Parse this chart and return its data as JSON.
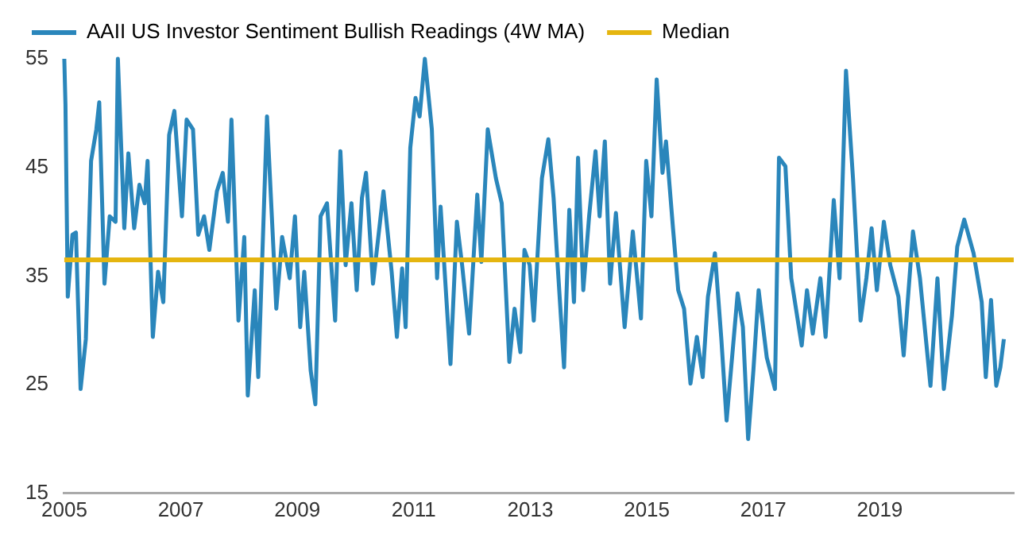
{
  "chart_data": {
    "type": "line",
    "legend": "top left",
    "grid": false,
    "marker": "none",
    "line_style": "solid",
    "xlim": [
      2005,
      2021.3
    ],
    "xticks": [
      2005,
      2007,
      2009,
      2011,
      2013,
      2015,
      2017,
      2019
    ],
    "ylim": [
      15,
      55
    ],
    "yticks": [
      15,
      25,
      35,
      45,
      55
    ],
    "ref_lines": [
      {
        "axis": "y",
        "value": 36.5,
        "label": "Median",
        "color": "#e5b50f"
      }
    ],
    "series": [
      {
        "name": "AAII US Investor Sentiment Bullish Readings (4W MA)",
        "color": "#2a86bb",
        "x": [
          2005.0,
          2005.02,
          2005.06,
          2005.14,
          2005.2,
          2005.28,
          2005.37,
          2005.46,
          2005.55,
          2005.6,
          2005.69,
          2005.78,
          2005.88,
          2005.92,
          2006.03,
          2006.1,
          2006.2,
          2006.29,
          2006.38,
          2006.43,
          2006.52,
          2006.61,
          2006.7,
          2006.8,
          2006.89,
          2007.02,
          2007.1,
          2007.21,
          2007.3,
          2007.4,
          2007.49,
          2007.62,
          2007.72,
          2007.81,
          2007.87,
          2007.99,
          2008.09,
          2008.15,
          2008.27,
          2008.33,
          2008.48,
          2008.64,
          2008.74,
          2008.87,
          2008.96,
          2009.05,
          2009.12,
          2009.23,
          2009.31,
          2009.4,
          2009.51,
          2009.65,
          2009.74,
          2009.83,
          2009.93,
          2010.02,
          2010.11,
          2010.18,
          2010.3,
          2010.48,
          2010.62,
          2010.71,
          2010.8,
          2010.86,
          2010.94,
          2011.03,
          2011.1,
          2011.19,
          2011.31,
          2011.4,
          2011.46,
          2011.63,
          2011.74,
          2011.83,
          2011.95,
          2012.09,
          2012.16,
          2012.27,
          2012.41,
          2012.51,
          2012.64,
          2012.73,
          2012.83,
          2012.9,
          2012.99,
          2013.06,
          2013.2,
          2013.31,
          2013.4,
          2013.47,
          2013.58,
          2013.67,
          2013.75,
          2013.82,
          2013.91,
          2014.01,
          2014.12,
          2014.19,
          2014.28,
          2014.37,
          2014.47,
          2014.62,
          2014.76,
          2014.9,
          2014.99,
          2015.08,
          2015.17,
          2015.27,
          2015.33,
          2015.45,
          2015.54,
          2015.64,
          2015.75,
          2015.86,
          2015.96,
          2016.05,
          2016.17,
          2016.28,
          2016.37,
          2016.56,
          2016.65,
          2016.74,
          2016.83,
          2016.92,
          2017.06,
          2017.2,
          2017.27,
          2017.38,
          2017.48,
          2017.66,
          2017.75,
          2017.85,
          2017.98,
          2018.07,
          2018.21,
          2018.31,
          2018.42,
          2018.54,
          2018.67,
          2018.77,
          2018.86,
          2018.95,
          2019.07,
          2019.18,
          2019.32,
          2019.41,
          2019.57,
          2019.69,
          2019.87,
          2019.99,
          2020.1,
          2020.24,
          2020.33,
          2020.45,
          2020.61,
          2020.75,
          2020.82,
          2020.91,
          2021.0,
          2021.07,
          2021.13
        ],
        "values": [
          55,
          50.8,
          33.1,
          38.8,
          39,
          24.6,
          29.2,
          45.6,
          48.5,
          51,
          34.3,
          40.5,
          40,
          55,
          39.4,
          46.3,
          39.4,
          43.4,
          41.7,
          45.6,
          29.4,
          35.4,
          32.6,
          48,
          50.2,
          40.5,
          49.4,
          48.5,
          38.8,
          40.5,
          37.4,
          42.8,
          44.5,
          40,
          49.4,
          30.9,
          38.6,
          24,
          33.7,
          25.7,
          49.7,
          32,
          38.6,
          34.8,
          40.5,
          30.3,
          35.4,
          26.3,
          23.2,
          40.5,
          41.7,
          30.9,
          46.5,
          36,
          41.7,
          33.7,
          42.2,
          44.5,
          34.3,
          42.8,
          35.4,
          29.4,
          35.7,
          30.3,
          46.8,
          51.4,
          49.7,
          55,
          48.5,
          34.8,
          41.4,
          26.9,
          40,
          36,
          29.7,
          42.5,
          36.3,
          48.5,
          44,
          41.7,
          27.1,
          32,
          28,
          37.4,
          36,
          30.9,
          44,
          47.6,
          42.2,
          36,
          26.6,
          41.1,
          32.6,
          45.9,
          33.7,
          40.5,
          46.5,
          40.5,
          47.4,
          34.3,
          40.8,
          30.3,
          39.1,
          31.1,
          45.6,
          40.5,
          53.1,
          44.5,
          47.4,
          39.4,
          33.7,
          32,
          25.1,
          29.4,
          25.7,
          33.1,
          37.1,
          29.2,
          21.7,
          33.4,
          30.3,
          20,
          26.3,
          33.7,
          27.5,
          24.6,
          45.9,
          45.1,
          34.8,
          28.6,
          33.7,
          29.7,
          34.8,
          29.4,
          42,
          34.8,
          53.9,
          44,
          30.9,
          34.8,
          39.4,
          33.7,
          40,
          36,
          33.1,
          27.7,
          39.1,
          34.8,
          24.9,
          34.8,
          24.6,
          31.4,
          37.7,
          40.2,
          37.1,
          32.6,
          25.7,
          32.8,
          24.9,
          26.6,
          29.2
        ]
      }
    ]
  }
}
